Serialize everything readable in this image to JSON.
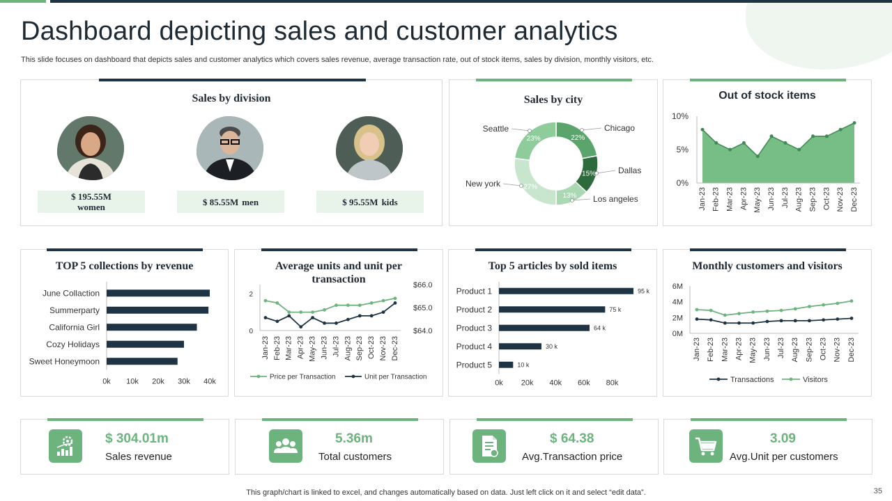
{
  "title": "Dashboard depicting sales and customer analytics",
  "subtitle": "This slide focuses on dashboard that depicts sales and customer analytics which covers sales revenue, average transaction rate, out of stock items, sales by division, monthly visitors, etc.",
  "footer_note": "This graph/chart is linked to excel,  and changes automatically based on data. Just left click on it and select “edit data”.",
  "page_number": "35",
  "colors": {
    "green": "#6db37e",
    "dark": "#1e3344",
    "light_green": "#e8f3ea"
  },
  "sales_by_division": {
    "title": "Sales by division",
    "items": [
      {
        "value": "$ 195.55M",
        "label": "women",
        "icon": "woman-avatar"
      },
      {
        "value": "$ 85.55M",
        "label": "men",
        "icon": "man-avatar"
      },
      {
        "value": "$ 95.55M",
        "label": "kids",
        "icon": "kid-avatar"
      }
    ]
  },
  "kpis": [
    {
      "value": "$ 304.01m",
      "label": "Sales revenue",
      "icon": "revenue-gear-icon"
    },
    {
      "value": "5.36m",
      "label": "Total customers",
      "icon": "customers-group-icon"
    },
    {
      "value": "$ 64.38",
      "label": "Avg.Transaction price",
      "icon": "invoice-document-icon"
    },
    {
      "value": "3.09",
      "label": "Avg.Unit per customers",
      "icon": "shopping-cart-icon"
    }
  ],
  "chart_data": [
    {
      "id": "sales_by_city",
      "type": "pie",
      "title": "Sales by city",
      "slices": [
        {
          "label": "Chicago",
          "value": 22,
          "display": "22%",
          "color": "#5aa56b"
        },
        {
          "label": "Dallas",
          "value": 15,
          "display": "15%",
          "color": "#2e6b3c"
        },
        {
          "label": "Los angeles",
          "value": 13,
          "display": "13%",
          "color": "#a9d8b2"
        },
        {
          "label": "New york",
          "value": 27,
          "display": "27%",
          "color": "#c8e6cd"
        },
        {
          "label": "Seattle",
          "value": 23,
          "display": "23%",
          "color": "#8fcc9c"
        }
      ]
    },
    {
      "id": "out_of_stock",
      "type": "area",
      "title": "Out of stock items",
      "categories": [
        "Jan-23",
        "Feb-23",
        "Mar-23",
        "Apr-23",
        "May-23",
        "Jun-23",
        "Jul-23",
        "Aug-23",
        "Sep-23",
        "Oct-23",
        "Nov-23",
        "Dec-23"
      ],
      "values": [
        8,
        6,
        5,
        6,
        4,
        7,
        6,
        5,
        7,
        7,
        8,
        9
      ],
      "ylim": [
        0,
        10
      ],
      "yticks": [
        "0%",
        "5%",
        "10%"
      ]
    },
    {
      "id": "top_collections",
      "type": "bar",
      "orientation": "horizontal",
      "title": "TOP 5 collections by revenue",
      "categories": [
        "June Collaction",
        "Summerparty",
        "California Girl",
        "Cozy Holidays",
        "Sweet Honeymoon"
      ],
      "values": [
        40000,
        39500,
        35000,
        30000,
        27500
      ],
      "xlim": [
        0,
        40000
      ],
      "xticks": [
        "0k",
        "10k",
        "20k",
        "30k",
        "40k"
      ]
    },
    {
      "id": "avg_units_transaction",
      "type": "line",
      "title": "Average units and unit per transaction",
      "categories": [
        "Jan-23",
        "Feb-23",
        "Mar-23",
        "Apr-23",
        "May-23",
        "Jun-23",
        "Jul-23",
        "Aug-23",
        "Sep-23",
        "Oct-23",
        "Nov-23",
        "Dec-23"
      ],
      "series": [
        {
          "name": "Price per Transaction",
          "axis": "right",
          "values": [
            65.3,
            65.2,
            64.8,
            64.8,
            64.8,
            64.9,
            65.1,
            65.1,
            65.1,
            65.2,
            65.3,
            65.4
          ],
          "color": "#6db37e"
        },
        {
          "name": "Unit per Transaction",
          "axis": "left",
          "values": [
            0.7,
            0.5,
            0.8,
            0.2,
            0.7,
            0.4,
            0.4,
            0.6,
            0.8,
            0.8,
            1.0,
            1.5
          ],
          "color": "#1e3344"
        }
      ],
      "ylim_left": [
        0,
        2.5
      ],
      "yticks_left": [
        "0",
        "2"
      ],
      "ylim_right": [
        64.0,
        66.0
      ],
      "yticks_right": [
        "$64.0",
        "$65.0",
        "$66.0"
      ]
    },
    {
      "id": "top_articles",
      "type": "bar",
      "orientation": "horizontal",
      "title": "Top 5 articles by sold items",
      "categories": [
        "Product 1",
        "Product 2",
        "Product 3",
        "Product 4",
        "Product 5"
      ],
      "values": [
        95000,
        75000,
        64000,
        30000,
        10000
      ],
      "data_labels": [
        "95 k",
        "75 k",
        "64 k",
        "30 k",
        "10 k"
      ],
      "xlim": [
        0,
        95000
      ],
      "xticks": [
        "0k",
        "20k",
        "40k",
        "60k",
        "80k"
      ]
    },
    {
      "id": "monthly_customers_visitors",
      "type": "line",
      "title": "Monthly customers and visitors",
      "categories": [
        "Jan-23",
        "Feb-23",
        "Mar-23",
        "Apr-23",
        "May-23",
        "Jun-23",
        "Jul-23",
        "Aug-23",
        "Sep-23",
        "Oct-23",
        "Nov-23",
        "Dec-23"
      ],
      "series": [
        {
          "name": "Transactions",
          "values": [
            1.8,
            1.7,
            1.3,
            1.3,
            1.3,
            1.5,
            1.6,
            1.6,
            1.6,
            1.7,
            1.8,
            1.9
          ],
          "color": "#1e3344"
        },
        {
          "name": "Visitors",
          "values": [
            3.0,
            2.9,
            2.3,
            2.5,
            2.7,
            2.8,
            2.9,
            3.1,
            3.4,
            3.6,
            3.8,
            4.1
          ],
          "color": "#6db37e"
        }
      ],
      "ylim": [
        0,
        6
      ],
      "yticks": [
        "0M",
        "2M",
        "4M",
        "6M"
      ]
    }
  ]
}
